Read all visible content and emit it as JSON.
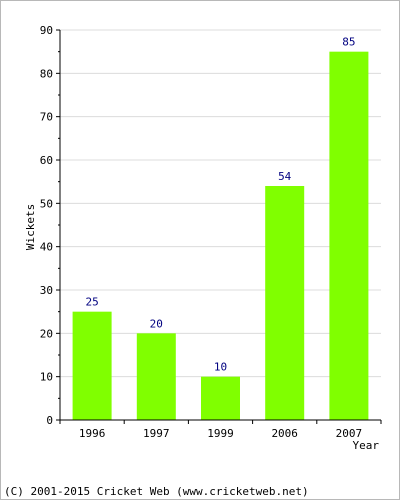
{
  "chart_data": {
    "type": "bar",
    "categories": [
      "1996",
      "1997",
      "1999",
      "2006",
      "2007"
    ],
    "values": [
      25,
      20,
      10,
      54,
      85
    ],
    "xlabel": "Year",
    "ylabel": "Wickets",
    "ylim": [
      0,
      90
    ],
    "yticks": [
      0,
      10,
      20,
      30,
      40,
      50,
      60,
      70,
      80,
      90
    ],
    "grid": true,
    "bar_color": "#80ff00",
    "label_color": "#000080"
  },
  "footer": {
    "copyright": "(C) 2001-2015 Cricket Web (www.cricketweb.net)"
  }
}
